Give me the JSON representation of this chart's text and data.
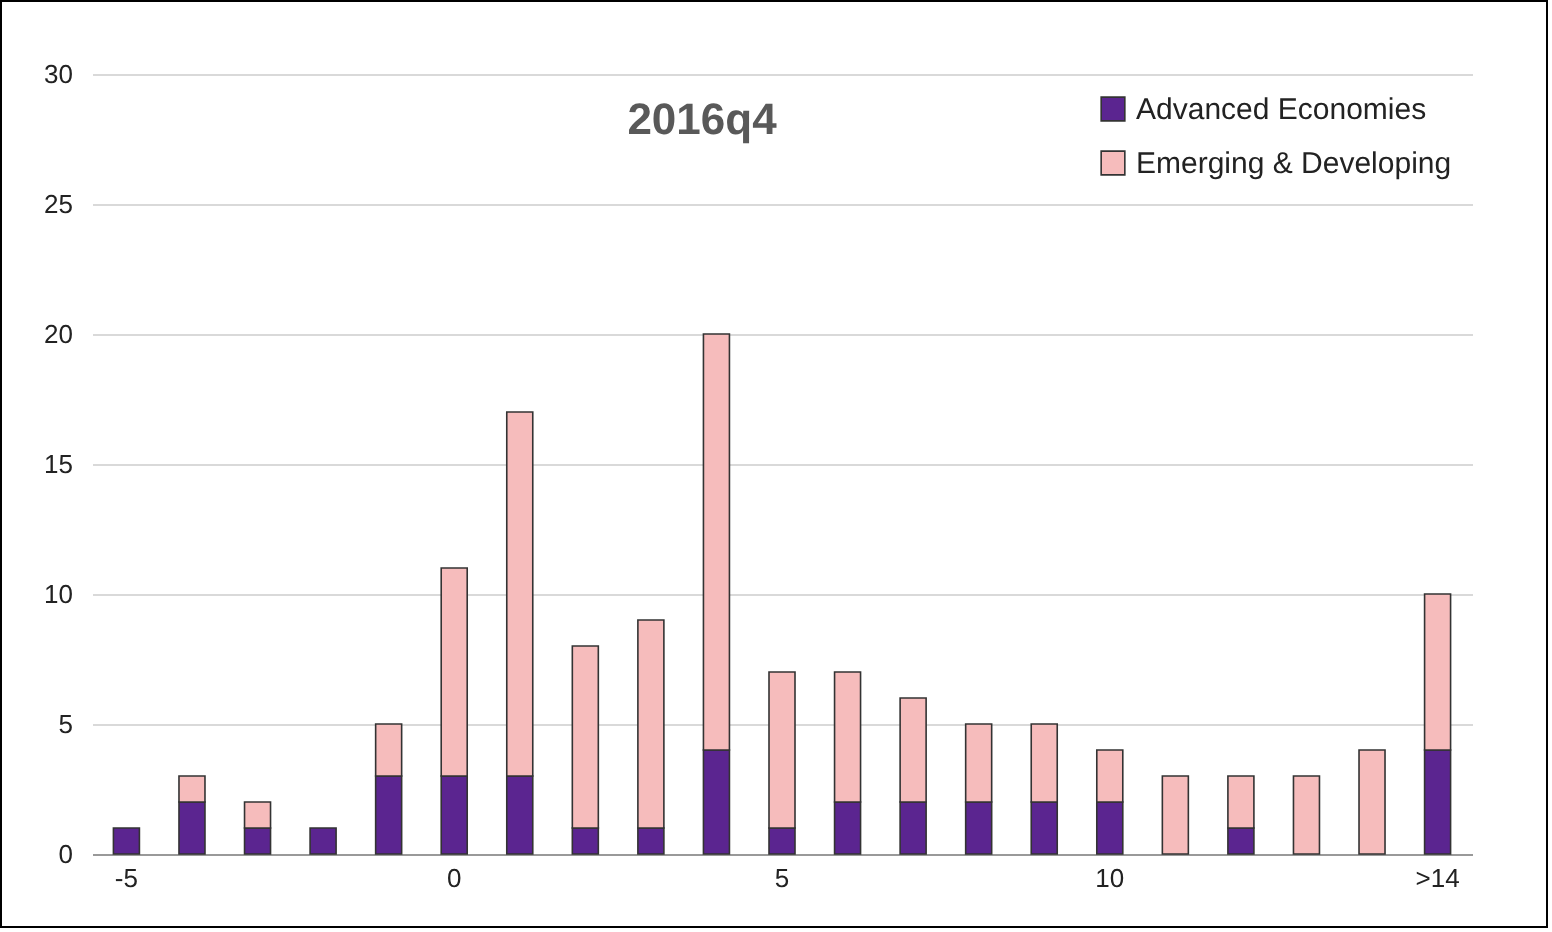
{
  "chart_data": {
    "type": "bar",
    "title": "2016q4",
    "stacked": true,
    "categories": [
      "-5",
      null,
      null,
      null,
      null,
      "0",
      null,
      null,
      null,
      null,
      "5",
      null,
      null,
      null,
      null,
      "10",
      null,
      null,
      null,
      null,
      ">14"
    ],
    "series": [
      {
        "name": "Advanced Economies",
        "color": "#5b2590",
        "values": [
          1,
          2,
          1,
          1,
          3,
          3,
          3,
          1,
          1,
          4,
          1,
          2,
          2,
          2,
          2,
          2,
          0,
          1,
          0,
          0,
          4
        ]
      },
      {
        "name": "Emerging & Developing",
        "color": "#f6bcbc",
        "values": [
          0,
          1,
          1,
          0,
          2,
          8,
          14,
          7,
          8,
          16,
          6,
          5,
          4,
          3,
          3,
          2,
          3,
          2,
          3,
          4,
          6
        ]
      }
    ],
    "ylim": [
      0,
      30
    ],
    "yticks": [
      0,
      5,
      10,
      15,
      20,
      25,
      30
    ],
    "grid": "y",
    "legend": "top right"
  }
}
